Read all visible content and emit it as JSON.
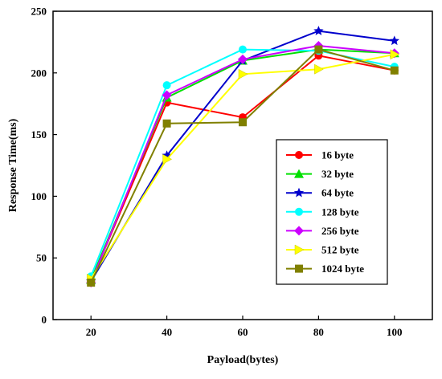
{
  "chart_data": {
    "type": "line",
    "title": "",
    "xlabel": "Payload(bytes)",
    "ylabel": "Response Time(ms)",
    "x": [
      20,
      40,
      60,
      80,
      100
    ],
    "xlim": [
      10,
      110
    ],
    "ylim": [
      0,
      250
    ],
    "xticks": [
      20,
      40,
      60,
      80,
      100
    ],
    "yticks": [
      0,
      50,
      100,
      150,
      200,
      250
    ],
    "grid": false,
    "legend_position": "inside-right",
    "series": [
      {
        "name": "16 byte",
        "color": "#ff0000",
        "marker": "circle",
        "values": [
          31,
          176,
          164,
          214,
          202
        ]
      },
      {
        "name": "32 byte",
        "color": "#00e000",
        "marker": "triangle-up",
        "values": [
          32,
          180,
          210,
          219,
          216
        ]
      },
      {
        "name": "64 byte",
        "color": "#0000cc",
        "marker": "star",
        "values": [
          31,
          133,
          210,
          234,
          226
        ]
      },
      {
        "name": "128 byte",
        "color": "#00ffff",
        "marker": "circle",
        "values": [
          35,
          190,
          219,
          218,
          205
        ]
      },
      {
        "name": "256 byte",
        "color": "#cc00ff",
        "marker": "diamond",
        "values": [
          30,
          182,
          211,
          222,
          216
        ]
      },
      {
        "name": "512 byte",
        "color": "#ffff00",
        "marker": "triangle-right",
        "values": [
          33,
          130,
          199,
          203,
          215
        ]
      },
      {
        "name": "1024 byte",
        "color": "#808000",
        "marker": "square",
        "values": [
          30,
          159,
          160,
          219,
          202
        ]
      }
    ]
  }
}
